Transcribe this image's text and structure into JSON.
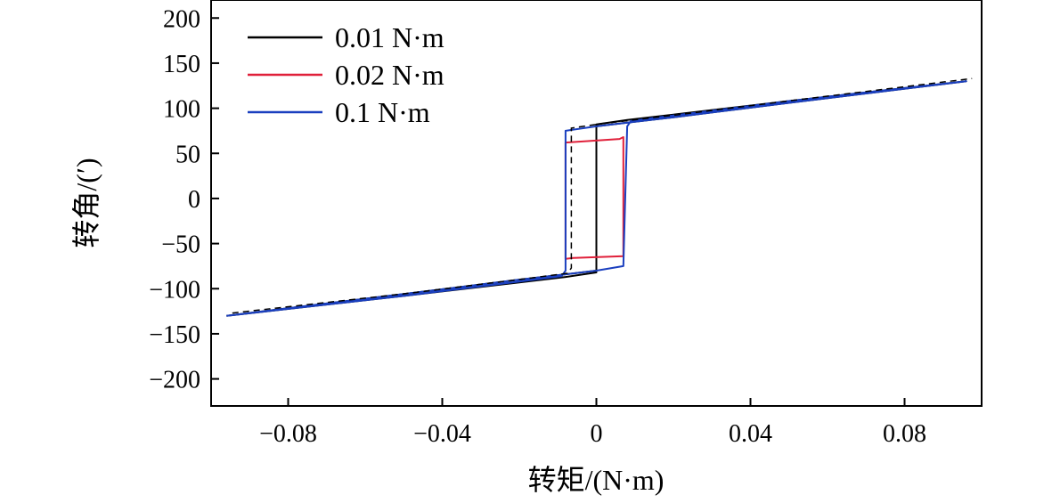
{
  "chart_data": {
    "type": "line",
    "xlabel": "转矩/(N·m)",
    "ylabel": "转角/(′)",
    "xlim": [
      -0.1,
      0.1
    ],
    "ylim": [
      -230,
      220
    ],
    "xticks": [
      -0.08,
      -0.04,
      0,
      0.04,
      0.08
    ],
    "xtick_labels": [
      "−0.08",
      "−0.04",
      "0",
      "0.04",
      "0.08"
    ],
    "yticks": [
      200,
      150,
      100,
      50,
      0,
      -50,
      -100,
      -150,
      -200
    ],
    "ytick_labels": [
      "200",
      "150",
      "100",
      "50",
      "0",
      "−50",
      "−100",
      "−150",
      "−200"
    ],
    "grid": false,
    "legend_position": "top-left",
    "series": [
      {
        "name": "0.01 N·m",
        "color": "#000000",
        "x": [
          -0.096,
          -0.05,
          -0.02,
          -0.008,
          0.0,
          0.0,
          0.008,
          0.02,
          0.05,
          0.096,
          0.05,
          0.02,
          0.008,
          0.0,
          0.0,
          -0.008,
          -0.02,
          -0.05,
          -0.096
        ],
        "y": [
          -130,
          -108,
          -93,
          -87,
          -82,
          80,
          84,
          90,
          106,
          130,
          108,
          93,
          87,
          82,
          -80,
          -84,
          -90,
          -106,
          -130
        ]
      },
      {
        "name": "0.02 N·m",
        "color": "#e0203a",
        "x": [
          -0.008,
          -0.008,
          0.006,
          0.007,
          0.007,
          -0.006,
          -0.008
        ],
        "y": [
          -67,
          62,
          66,
          68,
          -64,
          -66,
          -67
        ]
      },
      {
        "name": "0.1 N·m",
        "color": "#1a3fbf",
        "x": [
          -0.096,
          -0.05,
          -0.02,
          -0.009,
          -0.008,
          -0.008,
          0.0,
          0.008,
          0.02,
          0.05,
          0.096,
          0.05,
          0.02,
          0.009,
          0.008,
          0.007,
          0.0,
          -0.008,
          -0.02,
          -0.05,
          -0.096
        ],
        "y": [
          -130,
          -108,
          -92,
          -86,
          -80,
          75,
          80,
          84,
          90,
          106,
          130,
          108,
          92,
          86,
          80,
          -75,
          -80,
          -84,
          -90,
          -106,
          -130
        ]
      }
    ]
  }
}
